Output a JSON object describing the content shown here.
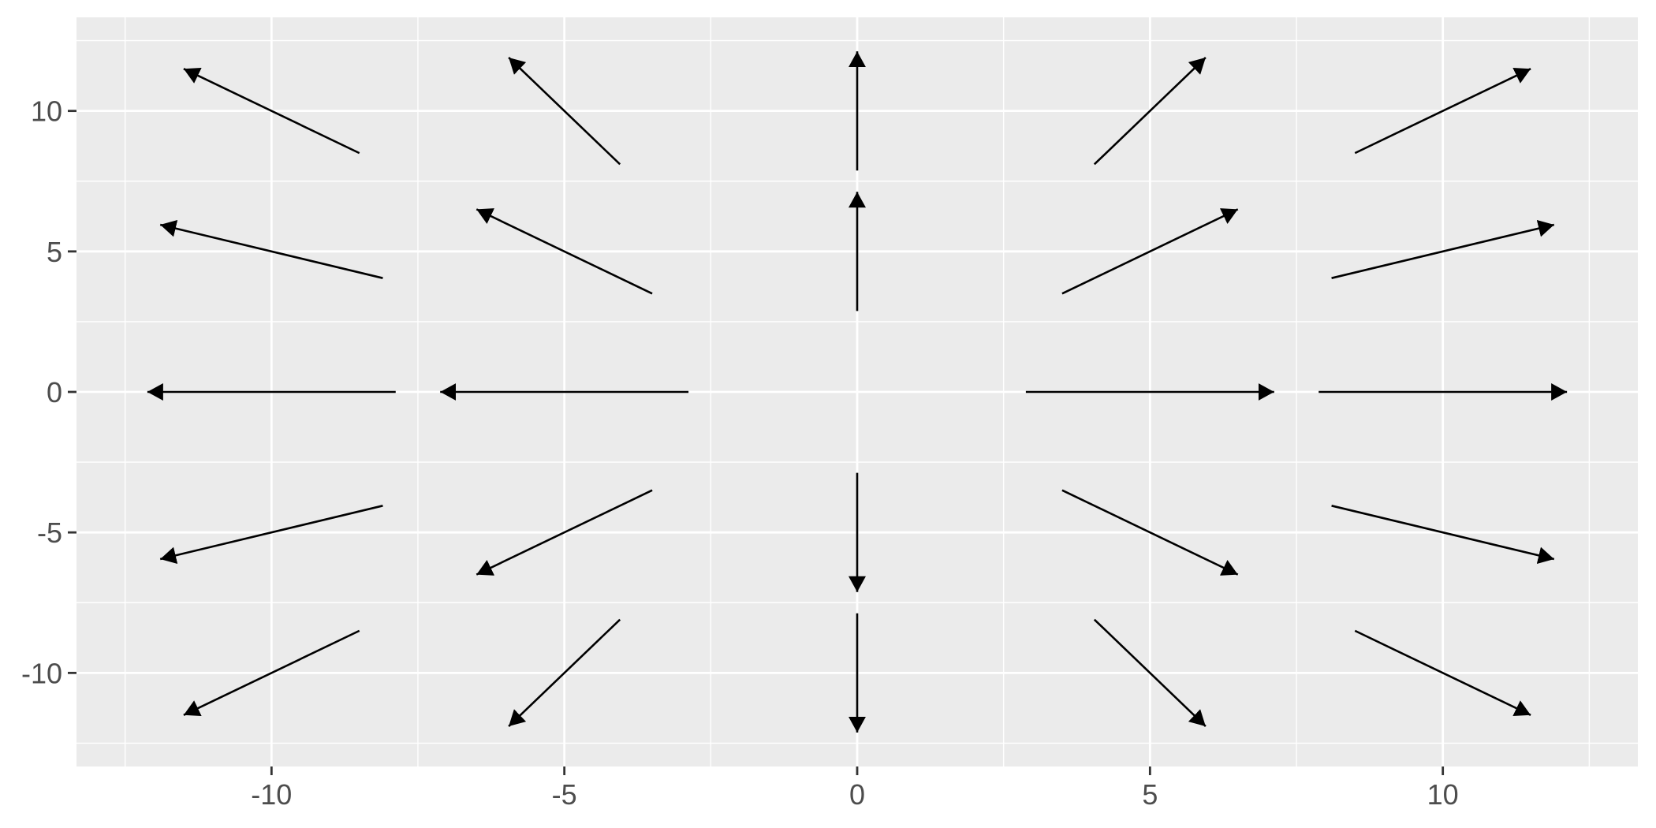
{
  "chart_data": {
    "type": "vector-field",
    "title": "",
    "xlabel": "",
    "ylabel": "",
    "xlim": [
      -13.33,
      13.33
    ],
    "ylim": [
      -13.33,
      13.33
    ],
    "x_ticks": [
      "-10",
      "-5",
      "0",
      "5",
      "10"
    ],
    "y_ticks": [
      "10",
      "5",
      "0",
      "-5",
      "-10"
    ],
    "x_tick_values": [
      -10,
      -5,
      0,
      5,
      10
    ],
    "y_tick_values": [
      10,
      5,
      0,
      -5,
      -10
    ],
    "minor_grid": [
      -12.5,
      -7.5,
      -2.5,
      2.5,
      7.5,
      12.5
    ],
    "grid": true,
    "colors": {
      "panel": "#EBEBEB",
      "grid": "#FFFFFF",
      "arrow": "#000000",
      "tick_text": "#4D4D4D",
      "tick_mark": "#333333"
    },
    "segments": [
      {
        "x": -8.5,
        "y": 8.5,
        "xend": -11.5,
        "yend": 11.5
      },
      {
        "x": -4.05,
        "y": 8.1,
        "xend": -5.95,
        "yend": 11.9
      },
      {
        "x": 0,
        "y": 7.88,
        "xend": 0,
        "yend": 12.12
      },
      {
        "x": 4.05,
        "y": 8.1,
        "xend": 5.95,
        "yend": 11.9
      },
      {
        "x": 8.5,
        "y": 8.5,
        "xend": 11.5,
        "yend": 11.5
      },
      {
        "x": -8.1,
        "y": 4.05,
        "xend": -11.9,
        "yend": 5.95
      },
      {
        "x": -3.5,
        "y": 3.5,
        "xend": -6.5,
        "yend": 6.5
      },
      {
        "x": 0,
        "y": 2.88,
        "xend": 0,
        "yend": 7.12
      },
      {
        "x": 3.5,
        "y": 3.5,
        "xend": 6.5,
        "yend": 6.5
      },
      {
        "x": 8.1,
        "y": 4.05,
        "xend": 11.9,
        "yend": 5.95
      },
      {
        "x": -7.88,
        "y": 0,
        "xend": -12.12,
        "yend": 0
      },
      {
        "x": -2.88,
        "y": 0,
        "xend": -7.12,
        "yend": 0
      },
      {
        "x": 2.88,
        "y": 0,
        "xend": 7.12,
        "yend": 0
      },
      {
        "x": 7.88,
        "y": 0,
        "xend": 12.12,
        "yend": 0
      },
      {
        "x": -8.1,
        "y": -4.05,
        "xend": -11.9,
        "yend": -5.95
      },
      {
        "x": -3.5,
        "y": -3.5,
        "xend": -6.5,
        "yend": -6.5
      },
      {
        "x": 0,
        "y": -2.88,
        "xend": 0,
        "yend": -7.12
      },
      {
        "x": 3.5,
        "y": -3.5,
        "xend": 6.5,
        "yend": -6.5
      },
      {
        "x": 8.1,
        "y": -4.05,
        "xend": 11.9,
        "yend": -5.95
      },
      {
        "x": -8.5,
        "y": -8.5,
        "xend": -11.5,
        "yend": -11.5
      },
      {
        "x": -4.05,
        "y": -8.1,
        "xend": -5.95,
        "yend": -11.9
      },
      {
        "x": 0,
        "y": -7.88,
        "xend": 0,
        "yend": -12.12
      },
      {
        "x": 4.05,
        "y": -8.1,
        "xend": 5.95,
        "yend": -11.9
      },
      {
        "x": 8.5,
        "y": -8.5,
        "xend": 11.5,
        "yend": -11.5
      }
    ]
  }
}
